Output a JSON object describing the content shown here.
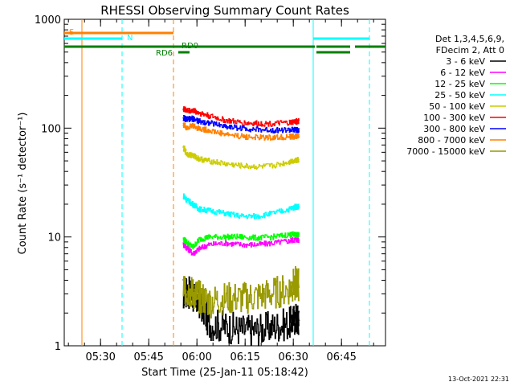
{
  "chart_data": {
    "type": "line",
    "title": "RHESSI Observing Summary Count Rates",
    "xlabel": "Start Time (25-Jan-11 05:18:42)",
    "ylabel": "Count Rate (s⁻¹ detector⁻¹)",
    "yscale": "log",
    "ylim": [
      1,
      1000
    ],
    "xlim_minutes": [
      0,
      100
    ],
    "x_ticks": [
      {
        "label": "05:30",
        "minute": 11.3
      },
      {
        "label": "05:45",
        "minute": 26.3
      },
      {
        "label": "06:00",
        "minute": 41.3
      },
      {
        "label": "06:15",
        "minute": 56.3
      },
      {
        "label": "06:30",
        "minute": 71.3
      },
      {
        "label": "06:45",
        "minute": 86.3
      }
    ],
    "y_ticks": [
      {
        "label": "1",
        "value": 1
      },
      {
        "label": "10",
        "value": 10
      },
      {
        "label": "100",
        "value": 100
      },
      {
        "label": "1000",
        "value": 1000
      }
    ],
    "legend": {
      "header": [
        "Det 1,3,4,5,6,9,",
        "FDecim 2, Att 0"
      ],
      "position": "right"
    },
    "series": [
      {
        "name": "3 - 6 keV",
        "color": "#000000",
        "x": [
          37,
          38,
          40,
          42,
          45,
          50,
          55,
          60,
          65,
          70,
          72,
          73
        ],
        "values": [
          3.0,
          3.2,
          2.8,
          2.5,
          1.6,
          1.5,
          1.4,
          1.4,
          1.5,
          1.6,
          1.8,
          1.7
        ]
      },
      {
        "name": "6 - 12 keV",
        "color": "#ff00ff",
        "x": [
          37,
          38,
          40,
          42,
          45,
          50,
          55,
          60,
          65,
          70,
          72,
          73
        ],
        "values": [
          8.5,
          8.0,
          7.0,
          7.8,
          8.5,
          8.8,
          8.5,
          8.5,
          8.8,
          9.2,
          9.5,
          9.4
        ]
      },
      {
        "name": "12 - 25 keV",
        "color": "#00ff00",
        "x": [
          37,
          38,
          40,
          42,
          45,
          50,
          55,
          60,
          65,
          70,
          72,
          73
        ],
        "values": [
          9.5,
          9.0,
          8.0,
          9.5,
          10.0,
          10.0,
          10.0,
          9.8,
          10.0,
          10.5,
          10.5,
          10.3
        ]
      },
      {
        "name": "25 - 50 keV",
        "color": "#00ffff",
        "x": [
          37,
          38,
          40,
          42,
          45,
          50,
          55,
          60,
          65,
          70,
          72,
          73
        ],
        "values": [
          24,
          22,
          20,
          18,
          17.5,
          16.5,
          15.5,
          15.5,
          16.5,
          18,
          19,
          19
        ]
      },
      {
        "name": "50 - 100 keV",
        "color": "#cccc00",
        "x": [
          37,
          38,
          40,
          42,
          45,
          50,
          55,
          60,
          65,
          70,
          72,
          73
        ],
        "values": [
          66,
          58,
          56,
          52,
          50,
          47,
          45,
          44,
          45,
          49,
          51,
          51
        ]
      },
      {
        "name": "100 - 300 keV",
        "color": "#ff0000",
        "x": [
          37,
          38,
          40,
          42,
          45,
          50,
          55,
          60,
          65,
          70,
          72,
          73
        ],
        "values": [
          150,
          145,
          145,
          138,
          130,
          118,
          112,
          110,
          110,
          112,
          115,
          115
        ]
      },
      {
        "name": "300 - 800 keV",
        "color": "#0000ff",
        "x": [
          37,
          38,
          40,
          42,
          45,
          50,
          55,
          60,
          65,
          70,
          72,
          73
        ],
        "values": [
          125,
          120,
          122,
          115,
          112,
          104,
          100,
          97,
          96,
          96,
          96,
          95
        ]
      },
      {
        "name": "800 - 7000 keV",
        "color": "#ff8000",
        "x": [
          37,
          38,
          40,
          42,
          45,
          50,
          55,
          60,
          65,
          70,
          72,
          73
        ],
        "values": [
          108,
          102,
          105,
          99,
          95,
          88,
          84,
          82,
          82,
          83,
          84,
          84
        ]
      },
      {
        "name": "7000 - 15000 keV",
        "color": "#999900",
        "x": [
          37,
          38,
          40,
          42,
          45,
          50,
          55,
          60,
          65,
          70,
          72,
          73
        ],
        "values": [
          3.5,
          3.2,
          3.0,
          2.8,
          2.5,
          2.7,
          2.7,
          2.8,
          3.0,
          3.3,
          3.8,
          3.6
        ]
      }
    ],
    "annotations": [
      {
        "label": "S",
        "color": "#ff8000"
      },
      {
        "label": "N",
        "color": "#00ffff"
      },
      {
        "label": "RD6",
        "color": "#008000"
      },
      {
        "label": "RD0",
        "color": "#008000"
      }
    ]
  },
  "footer": {
    "timestamp": "13-Oct-2021 22:31"
  }
}
